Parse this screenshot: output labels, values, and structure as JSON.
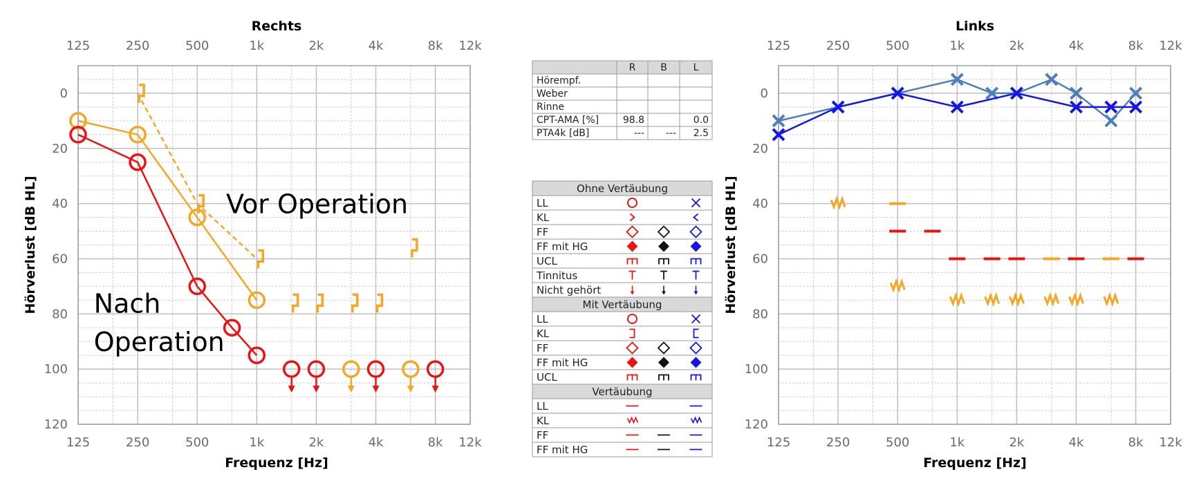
{
  "colors": {
    "red": "#ee1111",
    "orange": "#f5a623",
    "blue": "#1515e6",
    "steelblue": "#4f7fb8",
    "black": "#111111",
    "grid": "#bfbfbf",
    "header_bg": "#d9d9d9"
  },
  "chart_data": [
    {
      "type": "line",
      "title": "Rechts",
      "xlabel": "Frequenz [Hz]",
      "ylabel": "Hörverlust [dB HL]",
      "x_tick_labels": [
        "125",
        "250",
        "500",
        "1k",
        "2k",
        "4k",
        "8k",
        "12k"
      ],
      "y_tick_labels": [
        "0",
        "20",
        "40",
        "60",
        "80",
        "100",
        "120"
      ],
      "ylim": [
        -10,
        120
      ],
      "x_scale": "log",
      "grid": true,
      "annotations": [
        {
          "text": "Vor Operation",
          "frequency_hz": 700,
          "hearing_loss_db": 40
        },
        {
          "text": "Nach",
          "frequency_hz": 150,
          "hearing_loss_db": 76
        },
        {
          "text": "Operation",
          "frequency_hz": 150,
          "hearing_loss_db": 90
        }
      ],
      "series": [
        {
          "color": "orange",
          "marker": "circle",
          "line": "solid",
          "points": [
            [
              125,
              10
            ],
            [
              250,
              15
            ],
            [
              500,
              45
            ],
            [
              1000,
              75
            ]
          ]
        },
        {
          "color": "red",
          "marker": "circle",
          "line": "solid",
          "points": [
            [
              125,
              15
            ],
            [
              250,
              25
            ],
            [
              500,
              70
            ],
            [
              750,
              85
            ],
            [
              1000,
              95
            ]
          ]
        },
        {
          "color": "orange",
          "marker": "bracket",
          "line": "dashed",
          "points": [
            [
              250,
              0
            ],
            [
              500,
              40
            ],
            [
              1000,
              60
            ]
          ]
        },
        {
          "color": "orange",
          "marker": "bracket",
          "line": "none",
          "points": [
            [
              1500,
              76
            ],
            [
              2000,
              76
            ],
            [
              3000,
              76
            ],
            [
              4000,
              76
            ],
            [
              6000,
              56
            ]
          ]
        },
        {
          "color": "red",
          "marker": "circle-nr",
          "line": "none",
          "points": [
            [
              1500,
              100
            ],
            [
              2000,
              100
            ],
            [
              4000,
              100
            ],
            [
              8000,
              100
            ]
          ]
        },
        {
          "color": "orange",
          "marker": "circle-nr",
          "line": "none",
          "points": [
            [
              3000,
              100
            ],
            [
              6000,
              100
            ]
          ]
        }
      ]
    },
    {
      "type": "line",
      "title": "Links",
      "xlabel": "Frequenz [Hz]",
      "ylabel": "Hörverlust [dB HL]",
      "x_tick_labels": [
        "125",
        "250",
        "500",
        "1k",
        "2k",
        "4k",
        "8k",
        "12k"
      ],
      "y_tick_labels": [
        "0",
        "20",
        "40",
        "60",
        "80",
        "100",
        "120"
      ],
      "ylim": [
        -10,
        120
      ],
      "x_scale": "log",
      "grid": true,
      "series": [
        {
          "color": "steelblue",
          "marker": "x",
          "line": "solid",
          "points": [
            [
              125,
              10
            ],
            [
              250,
              5
            ],
            [
              500,
              0
            ],
            [
              1000,
              -5
            ],
            [
              1500,
              0
            ],
            [
              2000,
              0
            ],
            [
              3000,
              -5
            ],
            [
              4000,
              0
            ],
            [
              6000,
              10
            ],
            [
              8000,
              0
            ]
          ]
        },
        {
          "color": "blue",
          "marker": "x",
          "line": "solid",
          "points": [
            [
              125,
              15
            ],
            [
              250,
              5
            ],
            [
              500,
              0
            ],
            [
              1000,
              5
            ],
            [
              2000,
              0
            ],
            [
              4000,
              5
            ],
            [
              6000,
              5
            ],
            [
              8000,
              5
            ]
          ]
        },
        {
          "color": "orange",
          "marker": "masking-kl",
          "line": "none",
          "points": [
            [
              250,
              40
            ],
            [
              500,
              70
            ],
            [
              1000,
              75
            ],
            [
              1500,
              75
            ],
            [
              2000,
              75
            ],
            [
              3000,
              75
            ],
            [
              4000,
              75
            ],
            [
              6000,
              75
            ]
          ]
        },
        {
          "color": "orange",
          "marker": "masking-ll",
          "line": "none",
          "points": [
            [
              500,
              40
            ],
            [
              3000,
              60
            ],
            [
              6000,
              60
            ]
          ]
        },
        {
          "color": "red",
          "marker": "masking-ll",
          "line": "none",
          "points": [
            [
              500,
              50
            ],
            [
              750,
              50
            ],
            [
              1000,
              60
            ],
            [
              1500,
              60
            ],
            [
              2000,
              60
            ],
            [
              4000,
              60
            ],
            [
              8000,
              60
            ]
          ]
        }
      ]
    }
  ],
  "summary_table": {
    "columns": [
      "",
      "R",
      "B",
      "L"
    ],
    "rows": [
      [
        "Hörempf.",
        "",
        "",
        ""
      ],
      [
        "Weber",
        "",
        "",
        ""
      ],
      [
        "Rinne",
        "",
        "",
        ""
      ],
      [
        "CPT-AMA [%]",
        "98.8",
        "",
        "0.0"
      ],
      [
        "PTA4k [dB]",
        "---",
        "---",
        "2.5"
      ]
    ]
  },
  "legend": {
    "sections": [
      {
        "title": "Ohne Vertäubung",
        "rows": [
          {
            "label": "LL",
            "R": "circle",
            "B": "",
            "L": "x"
          },
          {
            "label": "KL",
            "R": "gt",
            "B": "",
            "L": "lt"
          },
          {
            "label": "FF",
            "R": "diamond-open",
            "B": "diamond-open",
            "L": "diamond-open"
          },
          {
            "label": "FF mit HG",
            "R": "diamond-filled",
            "B": "diamond-filled",
            "L": "diamond-filled"
          },
          {
            "label": "UCL",
            "R": "ucl",
            "B": "ucl",
            "L": "ucl"
          },
          {
            "label": "Tinnitus",
            "R": "tee",
            "B": "tee",
            "L": "tee"
          },
          {
            "label": "Nicht gehört",
            "R": "arrow-down",
            "B": "arrow-down",
            "L": "arrow-down"
          }
        ]
      },
      {
        "title": "Mit Vertäubung",
        "rows": [
          {
            "label": "LL",
            "R": "circle",
            "B": "",
            "L": "x"
          },
          {
            "label": "KL",
            "R": "bracket-right",
            "B": "",
            "L": "bracket-left"
          },
          {
            "label": "FF",
            "R": "diamond-open",
            "B": "diamond-open",
            "L": "diamond-open"
          },
          {
            "label": "FF mit HG",
            "R": "diamond-filled",
            "B": "diamond-filled",
            "L": "diamond-filled"
          },
          {
            "label": "UCL",
            "R": "ucl",
            "B": "ucl",
            "L": "ucl"
          }
        ]
      },
      {
        "title": "Vertäubung",
        "rows": [
          {
            "label": "LL",
            "R": "dash",
            "B": "",
            "L": "dash"
          },
          {
            "label": "KL",
            "R": "zigzag",
            "B": "",
            "L": "zigzag"
          },
          {
            "label": "FF",
            "R": "dash",
            "B": "dash",
            "L": "dash"
          },
          {
            "label": "FF mit HG",
            "R": "dash",
            "B": "dash",
            "L": "dash"
          }
        ]
      }
    ]
  }
}
